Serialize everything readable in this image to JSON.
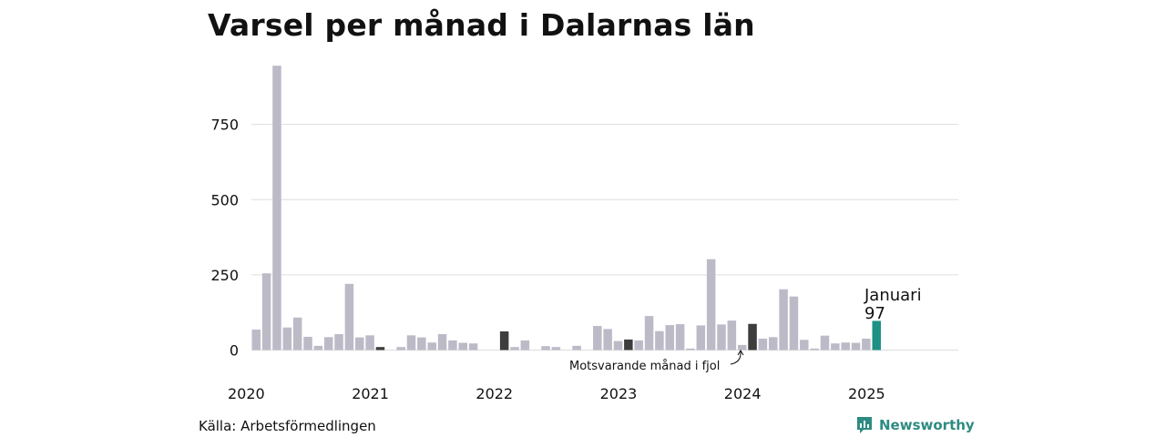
{
  "title": "Varsel per månad i Dalarnas län",
  "source": "Källa: Arbetsförmedlingen",
  "brand": {
    "name": "Newsworthy",
    "icon": "newsworthy-logo-icon",
    "color": "#2e8b82"
  },
  "annotation": "Motsvarande månad i fjol",
  "highlight": {
    "label": "Januari",
    "value_label": "97"
  },
  "colors": {
    "bar": "#bdbac8",
    "january": "#3d3d3d",
    "highlight": "#1e9185",
    "grid": "#dddddd"
  },
  "chart_data": {
    "type": "bar",
    "title": "Varsel per månad i Dalarnas län",
    "xlabel": "",
    "ylabel": "",
    "ylim": [
      0,
      950
    ],
    "yticks": [
      0,
      250,
      500,
      750
    ],
    "grid": true,
    "x_tick_labels": [
      "2020",
      "2021",
      "2022",
      "2023",
      "2024",
      "2025"
    ],
    "start": "2020-01",
    "end": "2025-12",
    "values": [
      68,
      255,
      945,
      75,
      108,
      44,
      14,
      43,
      53,
      220,
      42,
      49,
      10,
      0,
      10,
      49,
      42,
      25,
      53,
      32,
      24,
      22,
      0,
      0,
      62,
      10,
      32,
      0,
      13,
      10,
      0,
      14,
      0,
      80,
      70,
      30,
      35,
      32,
      113,
      63,
      83,
      86,
      5,
      82,
      302,
      85,
      98,
      17,
      87,
      38,
      43,
      202,
      178,
      34,
      5,
      48,
      22,
      25,
      24,
      38,
      97
    ],
    "highlighted_months": [
      "2021-01",
      "2022-01",
      "2023-01",
      "2024-01"
    ],
    "current_month": "2025-01"
  }
}
